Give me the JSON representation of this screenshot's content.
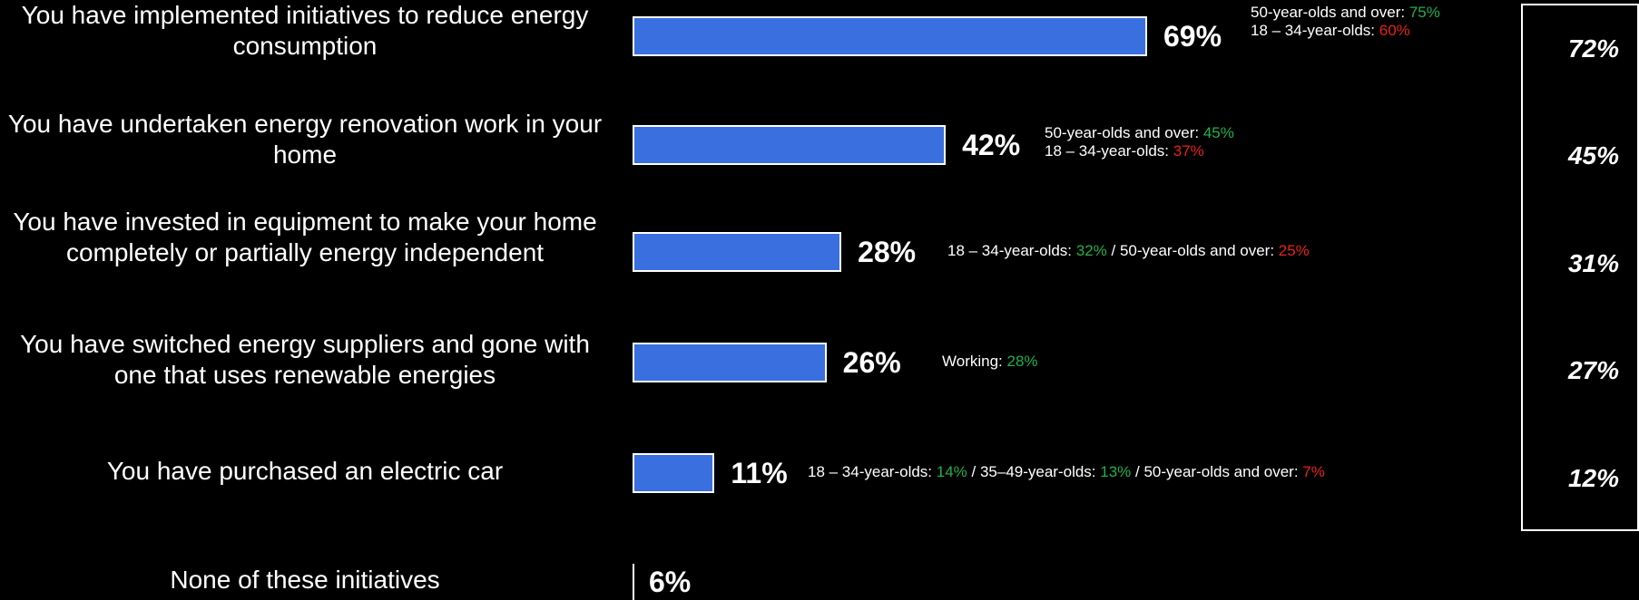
{
  "chart_data": {
    "type": "bar",
    "orientation": "horizontal",
    "categories": [
      "You have implemented initiatives to reduce energy consumption",
      "You have undertaken energy renovation work in your home",
      "You have invested in equipment to make your home completely or partially energy independent",
      "You have switched energy suppliers and gone with one that uses renewable energies",
      "You have purchased an electric car",
      "None of these initiatives"
    ],
    "series": [
      {
        "values": [
          69,
          42,
          28,
          26,
          11,
          6
        ]
      },
      {
        "values": [
          72,
          45,
          31,
          27,
          12,
          null
        ]
      }
    ],
    "value_labels": [
      "69%",
      "42%",
      "28%",
      "26%",
      "11%",
      "6%"
    ],
    "comparison_labels": [
      "72%",
      "45%",
      "31%",
      "27%",
      "12%"
    ],
    "xlim": [
      0,
      100
    ],
    "annotations": [
      [
        [
          {
            "text": "50-year-olds and over: ",
            "tone": "plain"
          },
          {
            "text": "75%",
            "tone": "high"
          }
        ],
        [
          {
            "text": "18 – 34-year-olds: ",
            "tone": "plain"
          },
          {
            "text": "60%",
            "tone": "low"
          }
        ]
      ],
      [
        [
          {
            "text": "50-year-olds and over: ",
            "tone": "plain"
          },
          {
            "text": "45%",
            "tone": "high"
          }
        ],
        [
          {
            "text": "18 – 34-year-olds: ",
            "tone": "plain"
          },
          {
            "text": "37%",
            "tone": "low"
          }
        ]
      ],
      [
        [
          {
            "text": "18 – 34-year-olds: ",
            "tone": "plain"
          },
          {
            "text": "32%",
            "tone": "high"
          },
          {
            "text": " / 50-year-olds and over: ",
            "tone": "plain"
          },
          {
            "text": "25%",
            "tone": "low"
          }
        ]
      ],
      [
        [
          {
            "text": "Working: ",
            "tone": "plain"
          },
          {
            "text": "28%",
            "tone": "high"
          }
        ]
      ],
      [
        [
          {
            "text": "18 – 34-year-olds: ",
            "tone": "plain"
          },
          {
            "text": "14%",
            "tone": "high"
          },
          {
            "text": " / 35–49-year-olds: ",
            "tone": "plain"
          },
          {
            "text": "13%",
            "tone": "high"
          },
          {
            "text": " / 50-year-olds and over: ",
            "tone": "plain"
          },
          {
            "text": "7%",
            "tone": "low"
          }
        ]
      ],
      []
    ],
    "colors": {
      "bar": "#3a6fe0",
      "bar_border": "#ffffff",
      "background": "#000000",
      "text": "#ffffff",
      "high": "#22b14c",
      "low": "#e8221b"
    }
  }
}
